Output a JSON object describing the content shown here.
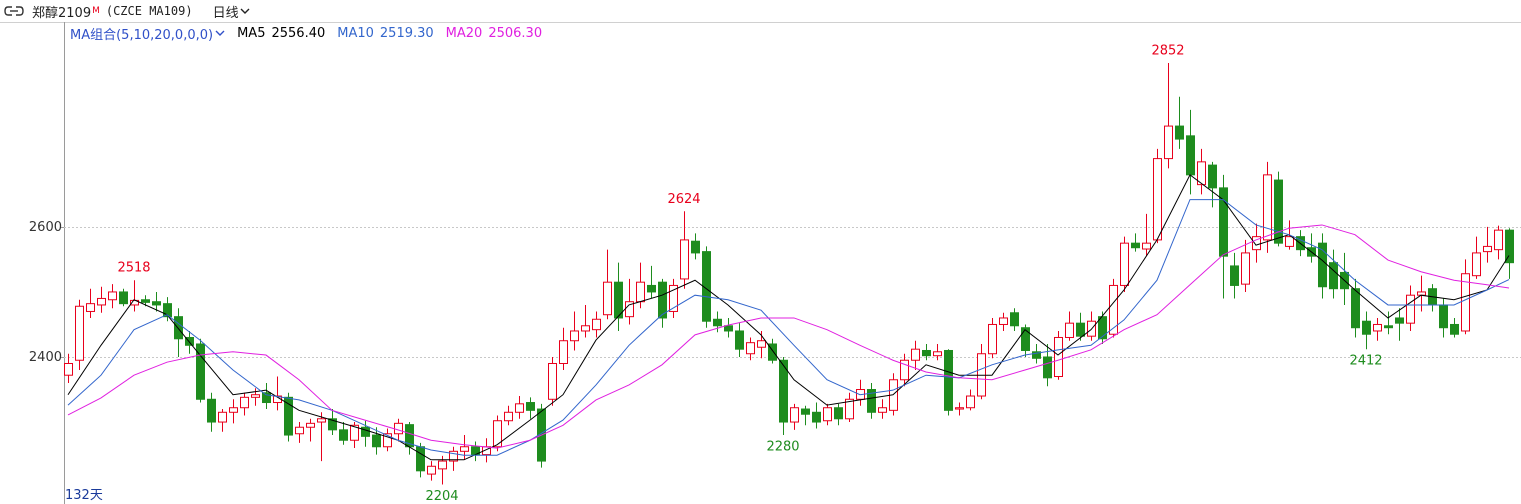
{
  "chart_data": {
    "type": "candlestick",
    "title": "郑醇2109",
    "title_badge": "M",
    "code": "(CZCE MA109)",
    "period": "日线",
    "ma_group": "MA组合(5,10,20,0,0,0)",
    "days_label": "132天",
    "up_color": "#e8001c",
    "down_color": "#1e8c1e",
    "ylim": [
      2174,
      2915
    ],
    "yticks": [
      2400,
      2600
    ],
    "grid": true,
    "open": [
      2372,
      2395,
      2470,
      2480,
      2488,
      2500,
      2480,
      2488,
      2485,
      2482,
      2462,
      2430,
      2420,
      2335,
      2300,
      2315,
      2322,
      2338,
      2345,
      2330,
      2338,
      2282,
      2292,
      2300,
      2305,
      2288,
      2272,
      2292,
      2280,
      2262,
      2282,
      2296,
      2262,
      2220,
      2228,
      2240,
      2255,
      2262,
      2250,
      2262,
      2302,
      2315,
      2330,
      2320,
      2335,
      2390,
      2425,
      2440,
      2442,
      2465,
      2515,
      2462,
      2485,
      2510,
      2515,
      2470,
      2520,
      2578,
      2562,
      2458,
      2448,
      2440,
      2405,
      2415,
      2420,
      2395,
      2300,
      2320,
      2315,
      2302,
      2322,
      2305,
      2335,
      2350,
      2315,
      2318,
      2365,
      2395,
      2410,
      2402,
      2410,
      2320,
      2322,
      2340,
      2405,
      2450,
      2468,
      2445,
      2408,
      2400,
      2370,
      2430,
      2452,
      2432,
      2462,
      2435,
      2510,
      2575,
      2566,
      2580,
      2705,
      2755,
      2740,
      2665,
      2695,
      2660,
      2540,
      2512,
      2565,
      2580,
      2672,
      2570,
      2585,
      2568,
      2575,
      2545,
      2530,
      2505,
      2455,
      2440,
      2448,
      2460,
      2452,
      2495,
      2505,
      2480,
      2450,
      2440,
      2525,
      2562,
      2565,
      2595
    ],
    "high": [
      2405,
      2488,
      2505,
      2508,
      2512,
      2505,
      2518,
      2495,
      2500,
      2492,
      2475,
      2440,
      2428,
      2345,
      2320,
      2335,
      2345,
      2352,
      2360,
      2370,
      2345,
      2300,
      2305,
      2315,
      2320,
      2300,
      2300,
      2302,
      2292,
      2290,
      2305,
      2300,
      2268,
      2240,
      2248,
      2262,
      2280,
      2270,
      2275,
      2310,
      2325,
      2340,
      2338,
      2328,
      2400,
      2445,
      2470,
      2480,
      2470,
      2565,
      2545,
      2520,
      2545,
      2540,
      2520,
      2520,
      2624,
      2590,
      2570,
      2470,
      2460,
      2452,
      2430,
      2440,
      2428,
      2400,
      2328,
      2325,
      2330,
      2328,
      2328,
      2345,
      2365,
      2360,
      2335,
      2375,
      2405,
      2425,
      2420,
      2420,
      2412,
      2330,
      2350,
      2420,
      2460,
      2468,
      2475,
      2450,
      2420,
      2420,
      2440,
      2470,
      2468,
      2470,
      2470,
      2520,
      2585,
      2590,
      2620,
      2720,
      2852,
      2800,
      2780,
      2720,
      2700,
      2680,
      2560,
      2580,
      2605,
      2700,
      2685,
      2610,
      2595,
      2590,
      2590,
      2565,
      2560,
      2520,
      2470,
      2460,
      2470,
      2475,
      2510,
      2525,
      2512,
      2490,
      2460,
      2550,
      2585,
      2600,
      2602,
      2598
    ],
    "low": [
      2360,
      2380,
      2460,
      2468,
      2475,
      2478,
      2470,
      2478,
      2470,
      2455,
      2400,
      2405,
      2330,
      2285,
      2285,
      2298,
      2310,
      2325,
      2320,
      2318,
      2270,
      2268,
      2270,
      2240,
      2280,
      2265,
      2260,
      2262,
      2250,
      2255,
      2270,
      2250,
      2215,
      2210,
      2204,
      2225,
      2242,
      2240,
      2238,
      2255,
      2295,
      2305,
      2305,
      2230,
      2325,
      2380,
      2410,
      2430,
      2430,
      2458,
      2440,
      2450,
      2475,
      2490,
      2445,
      2460,
      2505,
      2550,
      2445,
      2438,
      2430,
      2400,
      2395,
      2398,
      2390,
      2280,
      2288,
      2295,
      2290,
      2295,
      2295,
      2300,
      2325,
      2305,
      2305,
      2310,
      2355,
      2380,
      2395,
      2395,
      2310,
      2310,
      2318,
      2335,
      2398,
      2440,
      2440,
      2400,
      2390,
      2355,
      2365,
      2425,
      2425,
      2425,
      2420,
      2430,
      2500,
      2562,
      2555,
      2575,
      2690,
      2720,
      2650,
      2650,
      2630,
      2490,
      2490,
      2500,
      2545,
      2560,
      2570,
      2565,
      2555,
      2545,
      2490,
      2490,
      2480,
      2430,
      2412,
      2425,
      2435,
      2425,
      2440,
      2470,
      2470,
      2430,
      2430,
      2435,
      2520,
      2545,
      2550,
      2520
    ],
    "close": [
      2390,
      2478,
      2482,
      2490,
      2500,
      2482,
      2487,
      2484,
      2480,
      2462,
      2428,
      2418,
      2335,
      2300,
      2315,
      2322,
      2338,
      2342,
      2330,
      2340,
      2280,
      2292,
      2298,
      2305,
      2288,
      2272,
      2295,
      2278,
      2262,
      2282,
      2298,
      2262,
      2225,
      2232,
      2240,
      2255,
      2262,
      2250,
      2262,
      2302,
      2315,
      2328,
      2318,
      2240,
      2390,
      2425,
      2440,
      2448,
      2458,
      2515,
      2460,
      2485,
      2515,
      2500,
      2460,
      2510,
      2580,
      2560,
      2455,
      2448,
      2440,
      2412,
      2422,
      2425,
      2395,
      2300,
      2322,
      2312,
      2300,
      2322,
      2305,
      2335,
      2350,
      2315,
      2322,
      2365,
      2395,
      2412,
      2402,
      2408,
      2318,
      2322,
      2340,
      2405,
      2450,
      2460,
      2448,
      2410,
      2398,
      2368,
      2430,
      2452,
      2432,
      2455,
      2428,
      2510,
      2575,
      2568,
      2575,
      2705,
      2755,
      2735,
      2680,
      2700,
      2660,
      2555,
      2510,
      2560,
      2585,
      2680,
      2575,
      2585,
      2565,
      2555,
      2508,
      2505,
      2505,
      2445,
      2435,
      2450,
      2445,
      2452,
      2495,
      2500,
      2480,
      2445,
      2435,
      2528,
      2560,
      2570,
      2595,
      2545
    ],
    "ma_x": [
      0,
      3,
      6,
      9,
      12,
      15,
      18,
      21,
      24,
      27,
      30,
      33,
      36,
      39,
      42,
      45,
      48,
      51,
      54,
      57,
      60,
      63,
      66,
      69,
      72,
      75,
      78,
      81,
      84,
      87,
      90,
      93,
      96,
      99,
      102,
      105,
      108,
      111,
      114,
      117,
      120,
      123,
      126,
      129,
      131
    ],
    "series": [
      {
        "name": "MA5",
        "value_label": "2556.40",
        "color": "#000000",
        "values": [
          2342,
          2418,
          2488,
          2465,
          2403,
          2342,
          2349,
          2318,
          2303,
          2288,
          2272,
          2242,
          2242,
          2265,
          2303,
          2342,
          2426,
          2480,
          2495,
          2518,
          2480,
          2434,
          2365,
          2326,
          2334,
          2342,
          2388,
          2372,
          2372,
          2442,
          2403,
          2442,
          2503,
          2580,
          2680,
          2642,
          2572,
          2588,
          2549,
          2503,
          2460,
          2495,
          2488,
          2503,
          2556
        ]
      },
      {
        "name": "MA10",
        "value_label": "2519.30",
        "color": "#3366cc",
        "values": [
          2326,
          2372,
          2442,
          2465,
          2426,
          2380,
          2342,
          2334,
          2318,
          2295,
          2272,
          2257,
          2249,
          2249,
          2272,
          2303,
          2357,
          2418,
          2465,
          2495,
          2488,
          2472,
          2418,
          2365,
          2342,
          2349,
          2372,
          2368,
          2388,
          2403,
          2411,
          2418,
          2457,
          2518,
          2642,
          2642,
          2603,
          2588,
          2565,
          2518,
          2480,
          2480,
          2480,
          2503,
          2519
        ]
      },
      {
        "name": "MA20",
        "value_label": "2506.30",
        "color": "#e020e0",
        "values": [
          2311,
          2337,
          2372,
          2392,
          2403,
          2408,
          2403,
          2365,
          2318,
          2303,
          2288,
          2272,
          2265,
          2260,
          2272,
          2295,
          2334,
          2357,
          2388,
          2434,
          2449,
          2460,
          2460,
          2442,
          2418,
          2395,
          2377,
          2368,
          2365,
          2380,
          2395,
          2411,
          2442,
          2465,
          2511,
          2557,
          2580,
          2598,
          2603,
          2588,
          2549,
          2531,
          2518,
          2511,
          2506
        ]
      }
    ]
  }
}
